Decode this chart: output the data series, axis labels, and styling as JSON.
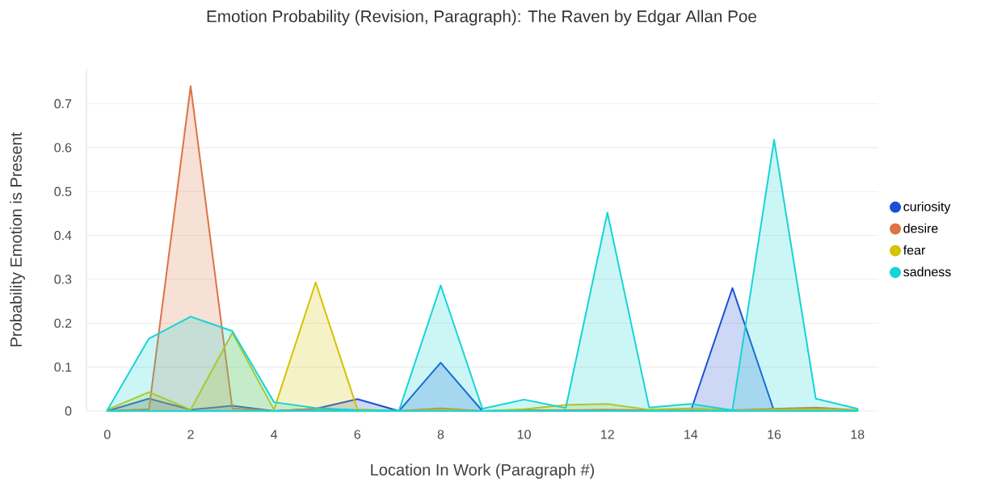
{
  "chart_data": {
    "type": "area",
    "title": "Emotion Probability (Revision, Paragraph): The Raven by Edgar Allan Poe",
    "xlabel": "Location In Work (Paragraph #)",
    "ylabel": "Probability Emotion is Present",
    "x": [
      0,
      1,
      2,
      3,
      4,
      5,
      6,
      7,
      8,
      9,
      10,
      11,
      12,
      13,
      14,
      15,
      16,
      17,
      18
    ],
    "series": [
      {
        "name": "curiosity",
        "color": "#1a4fd6",
        "values": [
          0,
          0.028,
          0.003,
          0.012,
          0,
          0.005,
          0.027,
          0,
          0.11,
          0,
          0,
          0,
          0,
          0,
          0,
          0.28,
          0,
          0,
          0
        ]
      },
      {
        "name": "desire",
        "color": "#dc7444",
        "values": [
          0,
          0.004,
          0.74,
          0.006,
          0,
          0.005,
          0.002,
          0,
          0.006,
          0,
          0.002,
          0.002,
          0.003,
          0.002,
          0.005,
          0.002,
          0.005,
          0.008,
          0.002
        ]
      },
      {
        "name": "fear",
        "color": "#d4c300",
        "values": [
          0.003,
          0.043,
          0.003,
          0.178,
          0.003,
          0.293,
          0.004,
          0,
          0.003,
          0,
          0.004,
          0.014,
          0.016,
          0.003,
          0.006,
          0.001,
          0.003,
          0.004,
          0.002
        ]
      },
      {
        "name": "sadness",
        "color": "#17d4d4",
        "values": [
          0.002,
          0.165,
          0.215,
          0.182,
          0.02,
          0.007,
          0.002,
          0.001,
          0.286,
          0.005,
          0.026,
          0.007,
          0.452,
          0.008,
          0.016,
          0.002,
          0.618,
          0.028,
          0.005
        ]
      }
    ],
    "xlim": [
      -0.5,
      18.5
    ],
    "ylim": [
      0,
      0.78
    ],
    "xticks": [
      0,
      2,
      4,
      6,
      8,
      10,
      12,
      14,
      16,
      18
    ],
    "yticks": [
      0,
      0.1,
      0.2,
      0.3,
      0.4,
      0.5,
      0.6,
      0.7
    ],
    "grid": "y",
    "legend": "right",
    "marker": "none",
    "line_style": "solid"
  }
}
